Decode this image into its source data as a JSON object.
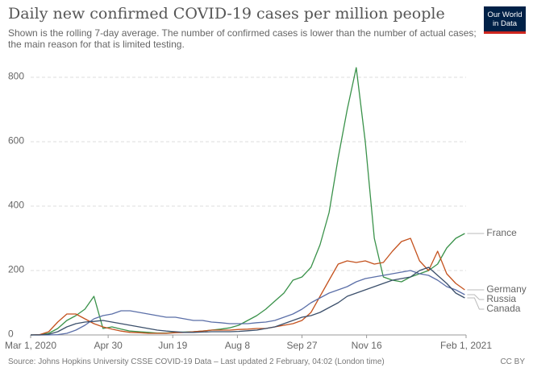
{
  "chart_data": {
    "type": "line",
    "title": "Daily new confirmed COVID-19 cases per million people",
    "subtitle": "Shown is the rolling 7-day average. The number of confirmed cases is lower than the number of actual cases; the main reason for that is limited testing.",
    "logo": [
      "Our World",
      "in Data"
    ],
    "source": "Source: Johns Hopkins University CSSE COVID-19 Data – Last updated 2 February, 04:02 (London time)",
    "license": "CC BY",
    "x": [
      "2020-03-01",
      "2020-03-08",
      "2020-03-15",
      "2020-03-22",
      "2020-03-29",
      "2020-04-05",
      "2020-04-12",
      "2020-04-19",
      "2020-04-26",
      "2020-05-03",
      "2020-05-10",
      "2020-05-17",
      "2020-05-24",
      "2020-05-31",
      "2020-06-07",
      "2020-06-14",
      "2020-06-21",
      "2020-06-28",
      "2020-07-05",
      "2020-07-12",
      "2020-07-19",
      "2020-07-26",
      "2020-08-02",
      "2020-08-09",
      "2020-08-16",
      "2020-08-23",
      "2020-08-30",
      "2020-09-06",
      "2020-09-13",
      "2020-09-20",
      "2020-09-27",
      "2020-10-04",
      "2020-10-11",
      "2020-10-18",
      "2020-10-25",
      "2020-11-01",
      "2020-11-08",
      "2020-11-15",
      "2020-11-22",
      "2020-11-29",
      "2020-12-06",
      "2020-12-13",
      "2020-12-20",
      "2020-12-27",
      "2021-01-03",
      "2021-01-10",
      "2021-01-17",
      "2021-01-24",
      "2021-01-31"
    ],
    "series": [
      {
        "name": "France",
        "color": "#3a924a",
        "values": [
          0,
          1,
          5,
          20,
          45,
          60,
          80,
          120,
          20,
          25,
          18,
          12,
          10,
          8,
          6,
          6,
          8,
          9,
          10,
          12,
          15,
          18,
          22,
          30,
          45,
          60,
          80,
          105,
          130,
          170,
          180,
          210,
          280,
          380,
          550,
          700,
          830,
          600,
          300,
          180,
          170,
          165,
          180,
          190,
          200,
          220,
          270,
          300,
          315
        ]
      },
      {
        "name": "Germany",
        "color": "#c4521e",
        "values": [
          0,
          1,
          10,
          40,
          65,
          65,
          50,
          35,
          25,
          18,
          12,
          8,
          7,
          5,
          5,
          5,
          7,
          8,
          10,
          12,
          15,
          15,
          15,
          17,
          18,
          20,
          20,
          25,
          30,
          35,
          45,
          70,
          120,
          170,
          220,
          230,
          225,
          230,
          220,
          225,
          260,
          290,
          300,
          230,
          200,
          260,
          190,
          160,
          140
        ]
      },
      {
        "name": "Russia",
        "color": "#5b6fa8",
        "values": [
          0,
          0,
          0,
          1,
          5,
          15,
          30,
          50,
          60,
          65,
          75,
          75,
          70,
          65,
          60,
          55,
          55,
          50,
          45,
          45,
          40,
          38,
          35,
          35,
          35,
          38,
          40,
          45,
          55,
          65,
          80,
          100,
          115,
          130,
          140,
          150,
          165,
          175,
          180,
          185,
          190,
          195,
          200,
          190,
          185,
          170,
          150,
          140,
          125
        ]
      },
      {
        "name": "Canada",
        "color": "#3b4f6b",
        "values": [
          0,
          0,
          2,
          10,
          25,
          35,
          40,
          42,
          45,
          40,
          35,
          30,
          25,
          20,
          15,
          12,
          10,
          8,
          8,
          9,
          10,
          10,
          10,
          11,
          13,
          15,
          20,
          25,
          35,
          45,
          55,
          60,
          70,
          85,
          100,
          120,
          130,
          140,
          150,
          160,
          170,
          175,
          180,
          200,
          210,
          185,
          160,
          130,
          115
        ]
      }
    ],
    "xlim": [
      "2020-03-01",
      "2021-02-01"
    ],
    "xticks": [
      {
        "value": "2020-03-01",
        "label": "Mar 1, 2020"
      },
      {
        "value": "2020-04-30",
        "label": "Apr 30"
      },
      {
        "value": "2020-06-19",
        "label": "Jun 19"
      },
      {
        "value": "2020-08-08",
        "label": "Aug 8"
      },
      {
        "value": "2020-09-27",
        "label": "Sep 27"
      },
      {
        "value": "2020-11-16",
        "label": "Nov 16"
      },
      {
        "value": "2021-02-01",
        "label": "Feb 1, 2021"
      }
    ],
    "ylim": [
      0,
      860
    ],
    "yticks": [
      0,
      200,
      400,
      600,
      800
    ],
    "grid": true
  }
}
